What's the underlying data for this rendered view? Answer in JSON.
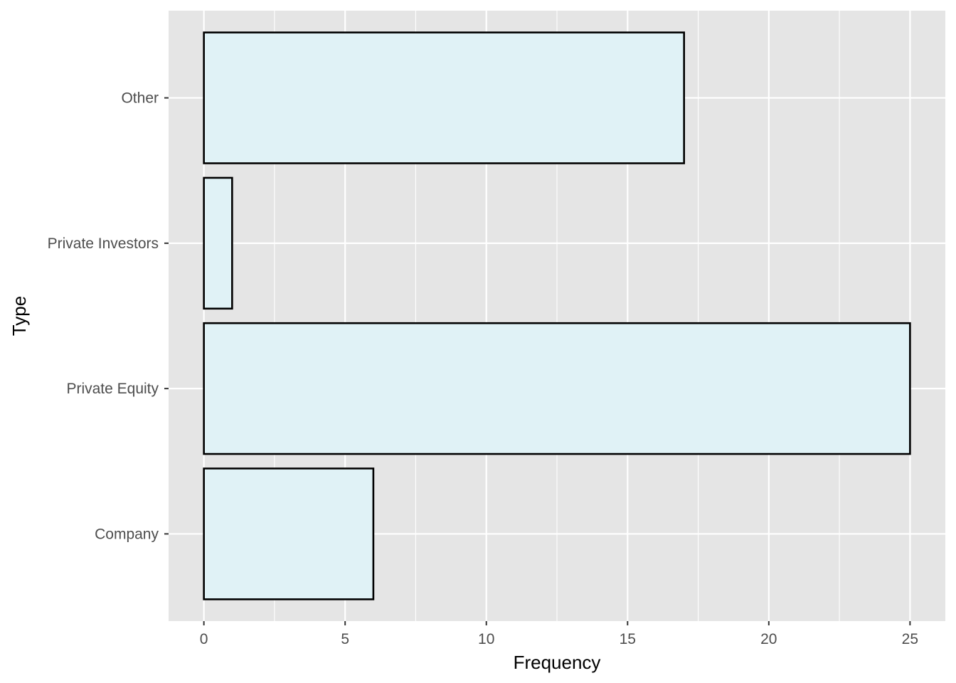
{
  "chart_data": {
    "type": "bar",
    "orientation": "horizontal",
    "categories": [
      "Company",
      "Private Equity",
      "Private Investors",
      "Other"
    ],
    "values": [
      6,
      25,
      1,
      17
    ],
    "xlabel": "Frequency",
    "ylabel": "Type",
    "xlim": [
      -1.25,
      26.25
    ],
    "xticks": [
      0,
      5,
      10,
      15,
      20,
      25
    ],
    "xtick_labels": [
      "0",
      "5",
      "10",
      "15",
      "20",
      "25"
    ],
    "grid": true,
    "legend": "none",
    "colors": {
      "panel_background": "#e5e5e5",
      "grid_line": "#ffffff",
      "bar_fill": "#e0f2f6",
      "bar_outline": "#000000",
      "tick_text": "#4d4d4d",
      "tick_mark": "#333333",
      "title_text": "#000000"
    }
  }
}
